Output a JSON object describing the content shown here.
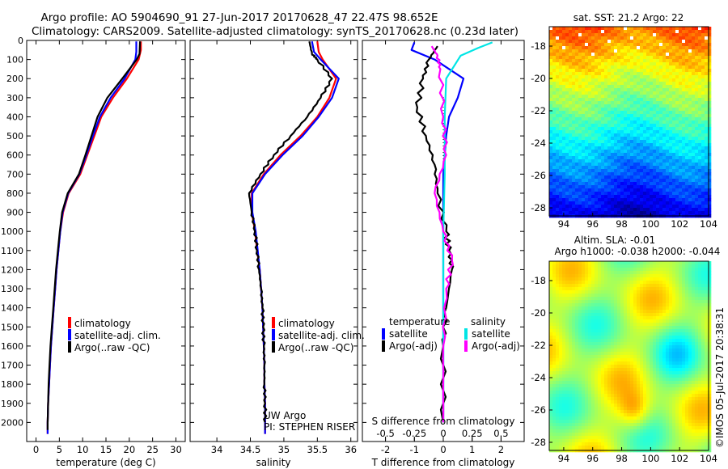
{
  "header": {
    "title_line1": "Argo profile: AO 5904690_91 27-Jun-2017 20170628_47 22.47S 98.652E",
    "title_line2": "Climatology: CARS2009. Satellite-adjusted climatology: synTS_20170628.nc (0.23d later)"
  },
  "colors": {
    "climatology": "#ff0000",
    "satellite": "#0000ff",
    "argo": "#000000",
    "salinity_satellite": "#00e5e5",
    "salinity_argo": "#ff00ff"
  },
  "chart_data": [
    {
      "id": "temperature",
      "type": "line",
      "xlabel": "temperature (deg C)",
      "xlim": [
        -2,
        32
      ],
      "xticks": [
        0,
        5,
        10,
        15,
        20,
        25,
        30
      ],
      "ylim": [
        2100,
        0
      ],
      "yticks": [
        0,
        100,
        200,
        300,
        400,
        500,
        600,
        700,
        800,
        900,
        1000,
        1100,
        1200,
        1300,
        1400,
        1500,
        1600,
        1700,
        1800,
        1900,
        2000
      ],
      "legend": [
        {
          "label": "climatology",
          "color": "#ff0000"
        },
        {
          "label": "satellite-adj. clim.",
          "color": "#0000ff"
        },
        {
          "label": "Argo(..raw -QC)",
          "color": "#000000"
        }
      ],
      "series": [
        {
          "name": "climatology",
          "color": "#ff0000",
          "points": [
            [
              22.5,
              5
            ],
            [
              22.5,
              50
            ],
            [
              22,
              100
            ],
            [
              19.5,
              200
            ],
            [
              16.5,
              300
            ],
            [
              14,
              400
            ],
            [
              12.5,
              500
            ],
            [
              11,
              600
            ],
            [
              9.5,
              700
            ],
            [
              7,
              800
            ],
            [
              5.8,
              900
            ],
            [
              5.2,
              1000
            ],
            [
              4.8,
              1100
            ],
            [
              4.4,
              1200
            ],
            [
              4.1,
              1300
            ],
            [
              3.8,
              1400
            ],
            [
              3.5,
              1500
            ],
            [
              3.2,
              1600
            ],
            [
              3,
              1700
            ],
            [
              2.8,
              1800
            ],
            [
              2.6,
              1900
            ],
            [
              2.5,
              2000
            ],
            [
              2.5,
              2060
            ]
          ]
        },
        {
          "name": "satellite-adj. clim.",
          "color": "#0000ff",
          "points": [
            [
              21.5,
              5
            ],
            [
              21.5,
              60
            ],
            [
              21.3,
              100
            ],
            [
              19,
              200
            ],
            [
              16,
              300
            ],
            [
              13.7,
              400
            ],
            [
              12.2,
              500
            ],
            [
              10.8,
              600
            ],
            [
              9.3,
              700
            ],
            [
              6.9,
              800
            ],
            [
              5.7,
              900
            ],
            [
              5.2,
              1000
            ],
            [
              4.8,
              1100
            ],
            [
              4.4,
              1200
            ],
            [
              4.1,
              1300
            ],
            [
              3.8,
              1400
            ],
            [
              3.5,
              1500
            ],
            [
              3.2,
              1600
            ],
            [
              3,
              1700
            ],
            [
              2.8,
              1800
            ],
            [
              2.6,
              1900
            ],
            [
              2.5,
              2000
            ],
            [
              2.5,
              2060
            ]
          ]
        },
        {
          "name": "Argo(..raw -QC)",
          "color": "#000000",
          "points": [
            [
              22.3,
              5
            ],
            [
              22.2,
              70
            ],
            [
              21.6,
              100
            ],
            [
              18.5,
              200
            ],
            [
              15.3,
              300
            ],
            [
              13.2,
              400
            ],
            [
              11.9,
              500
            ],
            [
              10.6,
              600
            ],
            [
              9.2,
              700
            ],
            [
              6.8,
              800
            ],
            [
              5.6,
              900
            ],
            [
              5.1,
              1000
            ],
            [
              4.7,
              1100
            ],
            [
              4.3,
              1200
            ],
            [
              4,
              1300
            ],
            [
              3.7,
              1400
            ],
            [
              3.4,
              1500
            ],
            [
              3.1,
              1600
            ],
            [
              2.9,
              1700
            ],
            [
              2.7,
              1800
            ],
            [
              2.6,
              1900
            ],
            [
              2.5,
              2000
            ],
            [
              2.5,
              2040
            ]
          ]
        }
      ]
    },
    {
      "id": "salinity",
      "type": "line",
      "xlabel": "salinity",
      "xlim": [
        33.6,
        36.1
      ],
      "xticks": [
        34,
        34.5,
        35,
        35.5,
        36
      ],
      "ylim": [
        2100,
        0
      ],
      "legend": [
        {
          "label": "climatology",
          "color": "#ff0000"
        },
        {
          "label": "satellite-adj. clim.",
          "color": "#0000ff"
        },
        {
          "label": "Argo(..raw -QC)",
          "color": "#000000"
        }
      ],
      "annotations": [
        "UW Argo",
        "PI: STEPHEN RISER"
      ],
      "series": [
        {
          "name": "climatology",
          "color": "#ff0000",
          "points": [
            [
              35.5,
              5
            ],
            [
              35.52,
              60
            ],
            [
              35.58,
              100
            ],
            [
              35.78,
              200
            ],
            [
              35.68,
              300
            ],
            [
              35.5,
              400
            ],
            [
              35.25,
              500
            ],
            [
              34.95,
              600
            ],
            [
              34.7,
              700
            ],
            [
              34.52,
              800
            ],
            [
              34.52,
              900
            ],
            [
              34.57,
              1000
            ],
            [
              34.6,
              1100
            ],
            [
              34.64,
              1200
            ],
            [
              34.66,
              1300
            ],
            [
              34.68,
              1400
            ],
            [
              34.69,
              1500
            ],
            [
              34.7,
              1600
            ],
            [
              34.71,
              1700
            ],
            [
              34.71,
              1800
            ],
            [
              34.72,
              1900
            ],
            [
              34.72,
              2000
            ],
            [
              34.72,
              2060
            ]
          ]
        },
        {
          "name": "satellite-adj. clim.",
          "color": "#0000ff",
          "points": [
            [
              35.42,
              5
            ],
            [
              35.45,
              60
            ],
            [
              35.55,
              100
            ],
            [
              35.82,
              200
            ],
            [
              35.72,
              300
            ],
            [
              35.52,
              400
            ],
            [
              35.28,
              500
            ],
            [
              34.98,
              600
            ],
            [
              34.72,
              700
            ],
            [
              34.53,
              800
            ],
            [
              34.53,
              900
            ],
            [
              34.58,
              1000
            ],
            [
              34.61,
              1100
            ],
            [
              34.64,
              1200
            ],
            [
              34.66,
              1300
            ],
            [
              34.68,
              1400
            ],
            [
              34.69,
              1500
            ],
            [
              34.7,
              1600
            ],
            [
              34.71,
              1700
            ],
            [
              34.71,
              1800
            ],
            [
              34.72,
              1900
            ],
            [
              34.72,
              2000
            ],
            [
              34.72,
              2060
            ]
          ]
        },
        {
          "name": "Argo(..raw -QC)",
          "color": "#000000",
          "points": [
            [
              35.38,
              5
            ],
            [
              35.42,
              70
            ],
            [
              35.5,
              100
            ],
            [
              35.72,
              200
            ],
            [
              35.55,
              300
            ],
            [
              35.35,
              400
            ],
            [
              35.1,
              500
            ],
            [
              34.85,
              600
            ],
            [
              34.65,
              700
            ],
            [
              34.48,
              800
            ],
            [
              34.52,
              900
            ],
            [
              34.57,
              1000
            ],
            [
              34.6,
              1100
            ],
            [
              34.63,
              1200
            ],
            [
              34.66,
              1300
            ],
            [
              34.68,
              1400
            ],
            [
              34.69,
              1500
            ],
            [
              34.7,
              1600
            ],
            [
              34.71,
              1700
            ],
            [
              34.71,
              1800
            ],
            [
              34.72,
              1900
            ],
            [
              34.72,
              2000
            ]
          ]
        }
      ]
    },
    {
      "id": "difference",
      "type": "line",
      "xlabel": "T difference from climatology",
      "top_label": "S difference from climatology",
      "xlim": [
        -2.8,
        2.8
      ],
      "xticks_t": [
        -2,
        -1,
        0,
        1,
        2
      ],
      "xticks_s": [
        -0.5,
        -0.25,
        0,
        0.25,
        0.5
      ],
      "xticks_s_labels": [
        "-0.5",
        "-0.25",
        "0",
        "0.25",
        "0.5"
      ],
      "ylim": [
        2100,
        0
      ],
      "legend": {
        "temperature_title": "temperature",
        "salinity_title": "salinity",
        "entries": [
          {
            "label": "satellite",
            "color": "#0000ff"
          },
          {
            "label": "Argo(-adj)",
            "color": "#000000"
          },
          {
            "label": "satellite",
            "color": "#00e5e5"
          },
          {
            "label": "Argo(-adj)",
            "color": "#ff00ff"
          }
        ]
      },
      "series": [
        {
          "name": "satellite",
          "color": "#0000ff",
          "points": [
            [
              -1,
              10
            ],
            [
              -1.1,
              50
            ],
            [
              -0.3,
              100
            ],
            [
              0.7,
              200
            ],
            [
              0.5,
              300
            ],
            [
              0.2,
              400
            ],
            [
              0.1,
              500
            ],
            [
              0.05,
              600
            ],
            [
              0,
              700
            ],
            [
              0,
              800
            ],
            [
              0,
              1000
            ],
            [
              0,
              1200
            ],
            [
              0,
              1500
            ],
            [
              0,
              2000
            ]
          ]
        },
        {
          "name": "Argo(-adj)",
          "color": "#000000",
          "points": [
            [
              -0.2,
              30
            ],
            [
              -0.5,
              100
            ],
            [
              -0.7,
              200
            ],
            [
              -0.9,
              350
            ],
            [
              -0.6,
              500
            ],
            [
              -0.3,
              650
            ],
            [
              -0.2,
              800
            ],
            [
              0.1,
              1000
            ],
            [
              0.2,
              1100
            ],
            [
              0.3,
              1200
            ],
            [
              0.1,
              1400
            ],
            [
              0,
              1600
            ],
            [
              0,
              2000
            ]
          ]
        },
        {
          "name": "satellite",
          "color": "#00e5e5",
          "points": [
            [
              1.7,
              10
            ],
            [
              1.2,
              40
            ],
            [
              0.6,
              80
            ],
            [
              0.1,
              200
            ],
            [
              0.05,
              400
            ],
            [
              0.05,
              700
            ],
            [
              0,
              1000
            ],
            [
              0,
              1300
            ],
            [
              0,
              1600
            ],
            [
              0,
              2000
            ]
          ]
        },
        {
          "name": "Argo(-adj)",
          "color": "#ff00ff",
          "points": [
            [
              -0.4,
              30
            ],
            [
              -0.2,
              80
            ],
            [
              -0.1,
              150
            ],
            [
              0,
              400
            ],
            [
              0.1,
              600
            ],
            [
              -0.3,
              800
            ],
            [
              0,
              1000
            ],
            [
              0.3,
              1150
            ],
            [
              0.1,
              1300
            ],
            [
              0,
              1600
            ],
            [
              0,
              2000
            ]
          ]
        }
      ]
    },
    {
      "id": "sst_map",
      "type": "heatmap",
      "title": "sat. SST: 21.2 Argo: 22",
      "xlim": [
        93,
        104
      ],
      "ylim": [
        -28.5,
        -16.8
      ],
      "xticks": [
        94,
        96,
        98,
        100,
        102,
        104
      ],
      "yticks": [
        -18,
        -20,
        -22,
        -24,
        -26,
        -28
      ]
    },
    {
      "id": "sla_map",
      "type": "heatmap",
      "title_line1": "Altim. SLA: -0.01",
      "title_line2": "Argo h1000: -0.038 h2000: -0.044",
      "xlim": [
        93,
        104
      ],
      "ylim": [
        -28.5,
        -16.8
      ],
      "xticks": [
        94,
        96,
        98,
        100,
        102,
        104
      ],
      "yticks": [
        -18,
        -20,
        -22,
        -24,
        -26,
        -28
      ]
    }
  ],
  "footer": {
    "stamp": "©IMOS 05-Jul-2017 20:38:31"
  }
}
